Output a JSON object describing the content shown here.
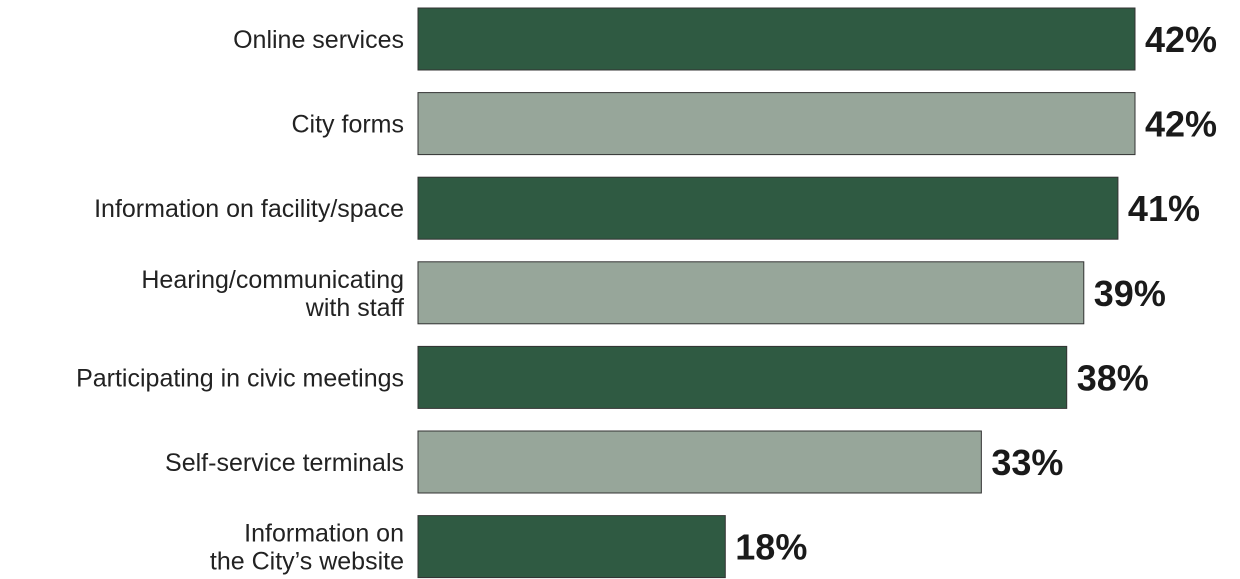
{
  "chart_data": {
    "type": "bar",
    "orientation": "horizontal",
    "categories": [
      "Online services",
      "City forms",
      "Information on facility/space",
      "Hearing/communicating\nwith staff",
      "Participating in civic meetings",
      "Self-service terminals",
      "Information on\nthe City’s website"
    ],
    "values": [
      42,
      42,
      41,
      39,
      38,
      33,
      18
    ],
    "value_labels": [
      "42%",
      "42%",
      "41%",
      "39%",
      "38%",
      "33%",
      "18%"
    ],
    "xlim": [
      0,
      42
    ],
    "grid": false,
    "legend": "none",
    "colors": {
      "primary": "#2f5a42",
      "alternate": "#97a69a",
      "bar_border": "#333333"
    },
    "bar_color_pattern": [
      "primary",
      "alternate"
    ]
  }
}
